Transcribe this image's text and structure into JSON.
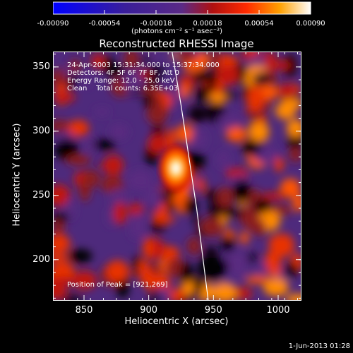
{
  "chart_data": {
    "type": "heatmap",
    "title": "Reconstructed RHESSI Image",
    "xlabel": "Heliocentric X (arcsec)",
    "ylabel": "Heliocentric Y (arcsec)",
    "xlim": [
      826,
      1018
    ],
    "ylim": [
      168,
      362
    ],
    "x_ticks": [
      850,
      900,
      950,
      1000
    ],
    "y_ticks": [
      200,
      250,
      300,
      350
    ],
    "colorbar": {
      "range": [
        -0.0009,
        0.0009
      ],
      "tick_values": [
        -0.0009,
        -0.00054,
        -0.00018,
        0.00018,
        0.00054,
        0.0009
      ],
      "tick_labels": [
        "-0.00090",
        "-0.00054",
        "-0.00018",
        "0.00018",
        "0.00054",
        "0.00090"
      ],
      "unit_label": "(photons cm⁻² s⁻¹ asec⁻²)"
    },
    "annotations": {
      "time": "24-Apr-2003 15:31:34.000 to 15:37:34.000",
      "detectors": "Detectors: 4F 5F 6F 7F 8F, Att 0",
      "energy": "Energy Range: 12.0 - 25.0 keV",
      "clean": "Clean    Total counts: 6.35E+03",
      "peak": "Position of Peak = [921,269]"
    },
    "peak": {
      "x": 921,
      "y": 269
    },
    "limb": [
      [
        918,
        362
      ],
      [
        925,
        320
      ],
      [
        931,
        280
      ],
      [
        937,
        240
      ],
      [
        942,
        200
      ],
      [
        946,
        168
      ]
    ],
    "footer": "1-Jun-2013 01:28"
  }
}
